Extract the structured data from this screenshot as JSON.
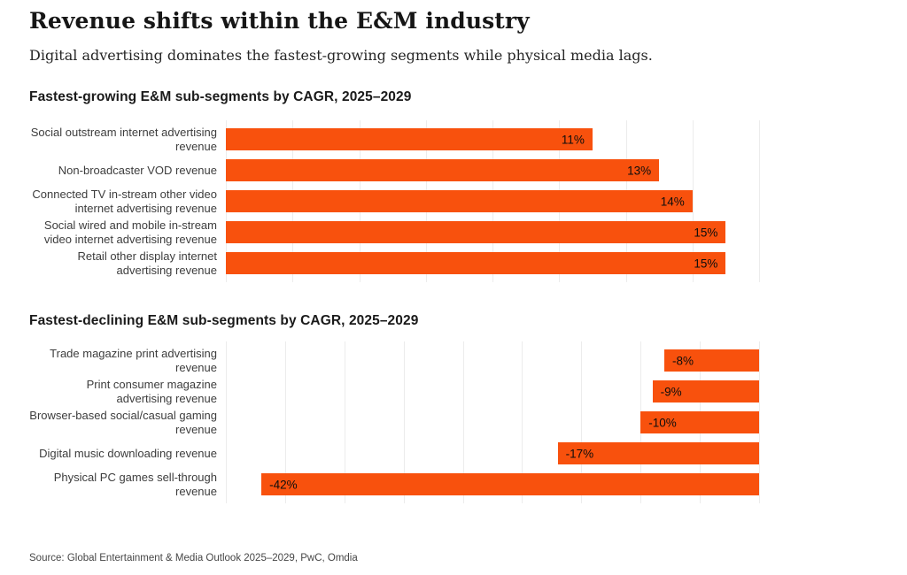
{
  "page": {
    "title": "Revenue shifts within the E&M industry",
    "subtitle": "Digital advertising dominates the fastest-growing segments while physical media lags.",
    "source": "Source: Global Entertainment & Media Outlook 2025–2029, PwC, Omdia"
  },
  "colors": {
    "bar_orange": "#F8510D",
    "label_gray": "#3d3d3d",
    "grid_gray": "#ececec",
    "text_black": "#161616"
  },
  "chart_data": [
    {
      "type": "bar",
      "orientation": "horizontal",
      "title": "Fastest-growing E&M sub-segments by CAGR, 2025–2029",
      "categories": [
        "Social outstream internet advertising revenue",
        "Non-broadcaster VOD revenue",
        "Connected TV in-stream other video internet advertising revenue",
        "Social wired and mobile in-stream video internet advertising revenue",
        "Retail other display internet advertising revenue"
      ],
      "values": [
        11,
        13,
        14,
        15,
        15
      ],
      "value_labels": [
        "11%",
        "13%",
        "14%",
        "15%",
        "15%"
      ],
      "value_label_position": "inside-end",
      "xlim": [
        0,
        16
      ],
      "gridline_step": 2,
      "grid": true,
      "legend": false,
      "bar_color": "#F8510D"
    },
    {
      "type": "bar",
      "orientation": "horizontal",
      "title": "Fastest-declining E&M sub-segments by CAGR, 2025–2029",
      "categories": [
        "Trade magazine print advertising revenue",
        "Print consumer magazine advertising revenue",
        "Browser-based social/casual gaming revenue",
        "Digital music downloading revenue",
        "Physical PC games sell-through revenue"
      ],
      "values": [
        -8,
        -9,
        -10,
        -17,
        -42
      ],
      "value_labels": [
        "-8%",
        "-9%",
        "-10%",
        "-17%",
        "-42%"
      ],
      "value_label_position": "inside-start",
      "xlim": [
        -45,
        0
      ],
      "gridline_step": 5,
      "grid": true,
      "legend": false,
      "bar_color": "#F8510D"
    }
  ]
}
